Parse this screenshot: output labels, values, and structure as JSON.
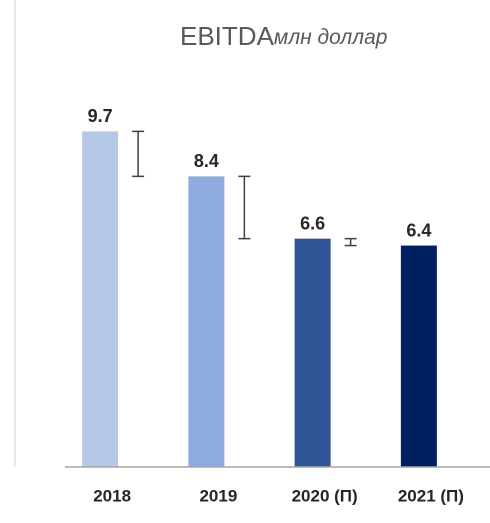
{
  "chart_data": {
    "type": "bar",
    "title": "EBITDA",
    "subtitle": "млн доллар",
    "categories": [
      "2018",
      "2019",
      "2020 (П)",
      "2021 (П)"
    ],
    "values": [
      9.7,
      8.4,
      6.6,
      6.4
    ],
    "errors": [
      1.3,
      1.8,
      0.2,
      null
    ],
    "colors": [
      "#b4c7e7",
      "#8faadc",
      "#2f5597",
      "#002060"
    ],
    "ylim": [
      0,
      10
    ]
  }
}
